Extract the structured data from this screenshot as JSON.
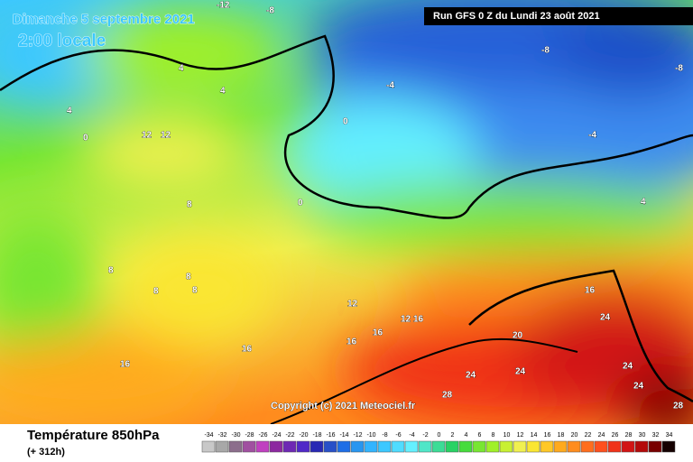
{
  "header": {
    "date": "Dimanche 5 septembre 2021",
    "time": "2:00 locale",
    "run": "Run GFS 0 Z du Lundi 23 août 2021",
    "copyright": "Copyright (c) 2021 Meteociel.fr"
  },
  "footer": {
    "title": "Température 850hPa",
    "subtitle": "(+ 312h)"
  },
  "legend": {
    "values": [
      -34,
      -32,
      -30,
      -28,
      -26,
      -24,
      -22,
      -20,
      -18,
      -16,
      -14,
      -12,
      -10,
      -8,
      -6,
      -4,
      -2,
      0,
      2,
      4,
      6,
      8,
      10,
      12,
      14,
      16,
      18,
      20,
      22,
      24,
      26,
      28,
      30,
      32,
      34
    ],
    "colors": [
      "#c8c8c8",
      "#a8a8a8",
      "#8c6e8c",
      "#a050a0",
      "#c040c0",
      "#8c28a0",
      "#6e28b4",
      "#5028c8",
      "#2828b4",
      "#2850c8",
      "#1e6ee6",
      "#2896f0",
      "#32b4ff",
      "#3cc8ff",
      "#50dcff",
      "#64f0ff",
      "#50e6c8",
      "#3cdc96",
      "#28d264",
      "#46dc3c",
      "#78e632",
      "#a0f028",
      "#c8f032",
      "#f0f050",
      "#fae632",
      "#ffc828",
      "#ffaa1e",
      "#ff8c1e",
      "#ff6e1e",
      "#ff501e",
      "#f03219",
      "#d21414",
      "#b40a0a",
      "#780000",
      "#140000"
    ]
  },
  "map_labels": [
    -12,
    -8,
    -8,
    -8,
    -4,
    -4,
    0,
    0,
    0,
    4,
    4,
    4,
    4,
    8,
    8,
    8,
    8,
    8,
    12,
    12,
    12,
    12,
    16,
    16,
    16,
    16,
    16,
    16,
    20,
    24,
    24,
    24,
    24,
    24,
    28,
    28
  ]
}
